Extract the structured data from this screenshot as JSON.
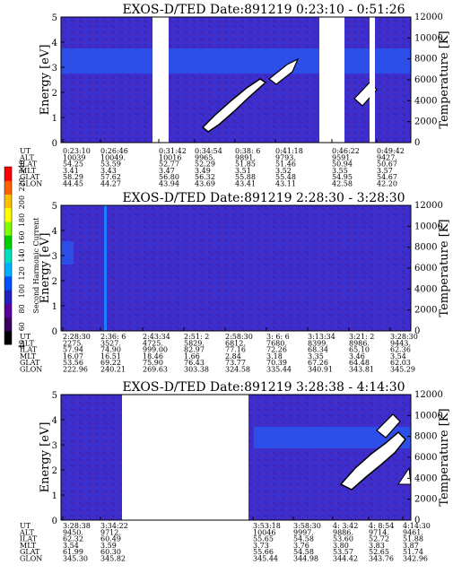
{
  "chart_data": [
    {
      "type": "heatmap",
      "title": "EXOS-D/TED   Date:891219   0:23:10 - 0:51:26",
      "ylabel": "Energy [eV]",
      "y2label": "Temperature [K]",
      "ylim": [
        0,
        5
      ],
      "y2lim": [
        0,
        12000
      ],
      "y_ticks": [
        "0",
        "1",
        "2",
        "3",
        "4",
        "5"
      ],
      "y2_ticks": [
        "0",
        "2000",
        "4000",
        "6000",
        "8000",
        "10000",
        "12000"
      ],
      "data_gaps": [
        [
          0.21,
          0.24
        ],
        [
          0.655,
          0.72
        ],
        [
          0.875,
          0.89
        ]
      ],
      "band": {
        "y_low": 3.3,
        "y_high": 3.7
      },
      "orbit_table": {
        "labels": [
          "UT",
          "ALT",
          "ILAT",
          "MLT",
          "GLAT",
          "GLON"
        ],
        "columns": [
          {
            "UT": "0:23:10",
            "ALT": "10039",
            "ILAT": "54.25",
            "MLT": "3.41",
            "GLAT": "58.29",
            "GLON": "44.45"
          },
          {
            "UT": "0:26:46",
            "ALT": "10049.",
            "ILAT": "53.59",
            "MLT": "3.43",
            "GLAT": "57.62",
            "GLON": "44.27"
          },
          {
            "UT": "0:31:42",
            "ALT": "10016",
            "ILAT": "52.77",
            "MLT": "3.47",
            "GLAT": "56.80",
            "GLON": "43.94"
          },
          {
            "UT": "0:34:54",
            "ALT": "9965.",
            "ILAT": "52.29",
            "MLT": "3.49",
            "GLAT": "56.32",
            "GLON": "43.69"
          },
          {
            "UT": "0:38: 6",
            "ALT": "9891.",
            "ILAT": "51.85",
            "MLT": "3.51",
            "GLAT": "55.88",
            "GLON": "43.41"
          },
          {
            "UT": "0:41:18",
            "ALT": "9793.",
            "ILAT": "51.46",
            "MLT": "3.52",
            "GLAT": "55.48",
            "GLON": "43.11"
          },
          {
            "UT": "0:46:22",
            "ALT": "9591.",
            "ILAT": "50.94",
            "MLT": "3.55",
            "GLAT": "54.95",
            "GLON": "42.58"
          },
          {
            "UT": "0:49:42",
            "ALT": "9427.",
            "ILAT": "50.67",
            "MLT": "3.57",
            "GLAT": "54.67",
            "GLON": "42.20"
          }
        ]
      }
    },
    {
      "type": "heatmap",
      "title": "EXOS-D/TED   Date:891219   2:28:30 - 3:28:30",
      "ylabel": "Energy [eV]",
      "y2label": "Temperature [K]",
      "ylim": [
        0,
        5
      ],
      "y2lim": [
        0,
        12000
      ],
      "y_ticks": [
        "0",
        "1",
        "2",
        "3",
        "4",
        "5"
      ],
      "y2_ticks": [
        "0",
        "2000",
        "4000",
        "6000",
        "8000",
        "10000",
        "12000"
      ],
      "data_gaps": [],
      "band": {
        "y_low": 2.7,
        "y_high": 3.3
      },
      "colorbar": {
        "label": "Second Harmonic Current",
        "ticks": [
          "40",
          "60",
          "80",
          "100",
          "120",
          "140",
          "160",
          "180",
          "200",
          "220",
          "240"
        ],
        "colors": [
          "#000000",
          "#3a0060",
          "#5a009a",
          "#2020c0",
          "#0050ff",
          "#00b0ff",
          "#00e0c0",
          "#00d000",
          "#80ff00",
          "#ffff00",
          "#ffc000",
          "#ff6000",
          "#ff0000"
        ]
      },
      "orbit_table": {
        "labels": [
          "UT",
          "ALT",
          "ILAT",
          "MLT",
          "GLAT",
          "GLON"
        ],
        "columns": [
          {
            "UT": "2:28:30",
            "ALT": "2275.",
            "ILAT": "57.94",
            "MLT": "16.07",
            "GLAT": "53.56",
            "GLON": "222.96"
          },
          {
            "UT": "2:36: 6",
            "ALT": "3527.",
            "ILAT": "74.90",
            "MLT": "16.51",
            "GLAT": "69.22",
            "GLON": "240.21"
          },
          {
            "UT": "2:43:34",
            "ALT": "4725.",
            "ILAT": "999.00",
            "MLT": "18.46",
            "GLAT": "75.90",
            "GLON": "269.63"
          },
          {
            "UT": "2:51: 2",
            "ALT": "5829.",
            "ILAT": "82.97",
            "MLT": "1.66",
            "GLAT": "76.43",
            "GLON": "303.38"
          },
          {
            "UT": "2:58:30",
            "ALT": "6812.",
            "ILAT": "77.16",
            "MLT": "2.84",
            "GLAT": "73.77",
            "GLON": "324.58"
          },
          {
            "UT": "3:  6: 6",
            "ALT": "7680.",
            "ILAT": "72.26",
            "MLT": "3.18",
            "GLAT": "70.39",
            "GLON": "335.44"
          },
          {
            "UT": "3:13:34",
            "ALT": "8399.",
            "ILAT": "68.34",
            "MLT": "3.35",
            "GLAT": "67.26",
            "GLON": "340.91"
          },
          {
            "UT": "3:21: 2",
            "ALT": "8986.",
            "ILAT": "65.10",
            "MLT": "3.46",
            "GLAT": "64.48",
            "GLON": "343.81"
          },
          {
            "UT": "3:28:30",
            "ALT": "9443.",
            "ILAT": "62.36",
            "MLT": "3.54",
            "GLAT": "62.03",
            "GLON": "345.29"
          }
        ]
      }
    },
    {
      "type": "heatmap",
      "title": "EXOS-D/TED   Date:891219   3:28:38 - 4:14:30",
      "ylabel": "Energy [eV]",
      "y2label": "Temperature [K]",
      "ylim": [
        0,
        5
      ],
      "y2lim": [
        0,
        12000
      ],
      "y_ticks": [
        "0",
        "1",
        "2",
        "3",
        "4",
        "5"
      ],
      "y2_ticks": [
        "0",
        "2000",
        "4000",
        "6000",
        "8000",
        "10000",
        "12000"
      ],
      "data_gaps": [
        [
          0.175,
          0.485
        ]
      ],
      "band": {
        "y_low": 3.3,
        "y_high": 3.7
      },
      "orbit_table": {
        "labels": [
          "UT",
          "ALT",
          "ILAT",
          "MLT",
          "GLAT",
          "GLON"
        ],
        "columns": [
          {
            "UT": "3:28:38",
            "ALT": "9450.",
            "ILAT": "62.32",
            "MLT": "3.54",
            "GLAT": "61.99",
            "GLON": "345.30"
          },
          {
            "UT": "3:34:22",
            "ALT": "9712.",
            "ILAT": "60.49",
            "MLT": "3.59",
            "GLAT": "60.30",
            "GLON": "345.82"
          },
          {
            "UT": "3:53:18",
            "ALT": "10046",
            "ILAT": "55.65",
            "MLT": "3.73",
            "GLAT": "55.66",
            "GLON": "345.44"
          },
          {
            "UT": "3:58:30",
            "ALT": "9997.",
            "ILAT": "54.58",
            "MLT": "3.76",
            "GLAT": "54.58",
            "GLON": "344.98"
          },
          {
            "UT": "4:  3:42",
            "ALT": "9886.",
            "ILAT": "53.60",
            "MLT": "3.80",
            "GLAT": "53.57",
            "GLON": "344.42"
          },
          {
            "UT": "4:  8:54",
            "ALT": "9714.",
            "ILAT": "52.72",
            "MLT": "3.83",
            "GLAT": "52.65",
            "GLON": "343.76"
          },
          {
            "UT": "4:14:30",
            "ALT": "9461.",
            "ILAT": "51.88",
            "MLT": "3.87",
            "GLAT": "51.74",
            "GLON": "342.96"
          }
        ]
      }
    }
  ]
}
